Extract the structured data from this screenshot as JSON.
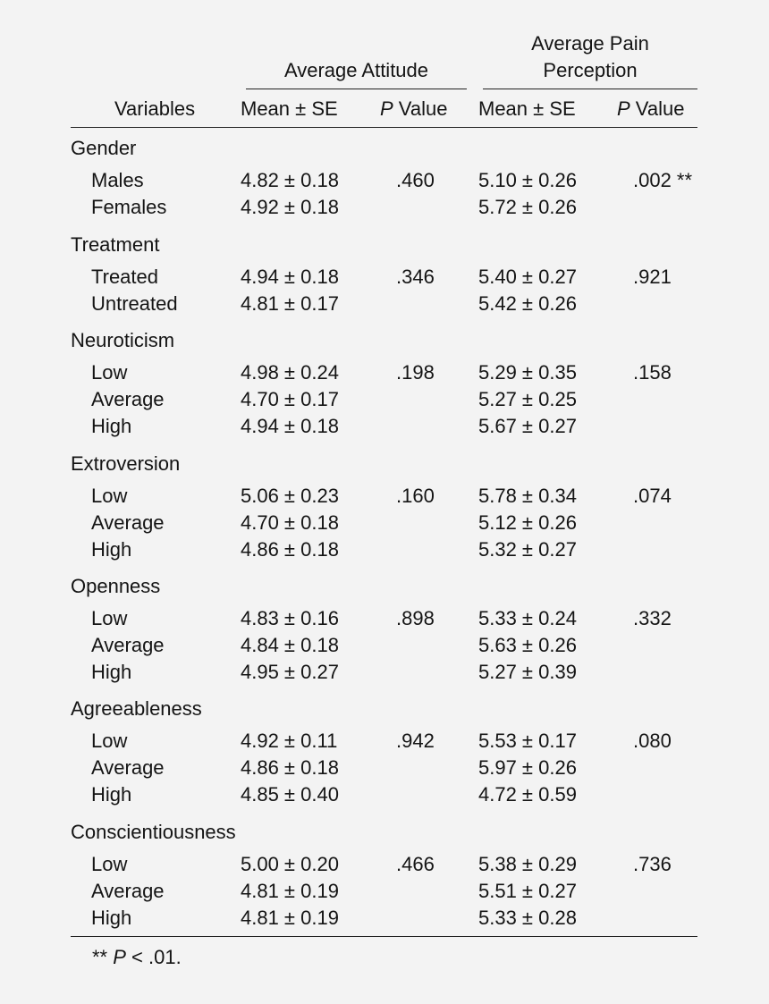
{
  "table": {
    "group_headers": {
      "attitude": "Average Attitude",
      "pain_line1": "Average Pain",
      "pain_line2": "Perception"
    },
    "columns": {
      "variables": "Variables",
      "mean_se": "Mean ± SE",
      "p_italic": "P",
      "p_value": " Value"
    },
    "groups": [
      {
        "name": "Gender",
        "rows": [
          {
            "label": "Males",
            "att": "4.82 ± 0.18",
            "att_p": ".460",
            "pain": "5.10 ± 0.26",
            "pain_p": ".002 **"
          },
          {
            "label": "Females",
            "att": "4.92 ± 0.18",
            "att_p": "",
            "pain": "5.72 ± 0.26",
            "pain_p": ""
          }
        ]
      },
      {
        "name": "Treatment",
        "rows": [
          {
            "label": "Treated",
            "att": "4.94 ± 0.18",
            "att_p": ".346",
            "pain": "5.40 ± 0.27",
            "pain_p": ".921"
          },
          {
            "label": "Untreated",
            "att": "4.81 ± 0.17",
            "att_p": "",
            "pain": "5.42 ± 0.26",
            "pain_p": ""
          }
        ]
      },
      {
        "name": "Neuroticism",
        "rows": [
          {
            "label": "Low",
            "att": "4.98 ± 0.24",
            "att_p": ".198",
            "pain": "5.29 ± 0.35",
            "pain_p": ".158"
          },
          {
            "label": "Average",
            "att": "4.70 ± 0.17",
            "att_p": "",
            "pain": "5.27 ± 0.25",
            "pain_p": ""
          },
          {
            "label": "High",
            "att": "4.94 ± 0.18",
            "att_p": "",
            "pain": "5.67 ± 0.27",
            "pain_p": ""
          }
        ]
      },
      {
        "name": "Extroversion",
        "rows": [
          {
            "label": "Low",
            "att": "5.06 ± 0.23",
            "att_p": ".160",
            "pain": "5.78 ± 0.34",
            "pain_p": ".074"
          },
          {
            "label": "Average",
            "att": "4.70 ± 0.18",
            "att_p": "",
            "pain": "5.12 ± 0.26",
            "pain_p": ""
          },
          {
            "label": "High",
            "att": "4.86 ± 0.18",
            "att_p": "",
            "pain": "5.32 ± 0.27",
            "pain_p": ""
          }
        ]
      },
      {
        "name": "Openness",
        "rows": [
          {
            "label": "Low",
            "att": "4.83 ± 0.16",
            "att_p": ".898",
            "pain": "5.33 ± 0.24",
            "pain_p": ".332"
          },
          {
            "label": "Average",
            "att": "4.84 ± 0.18",
            "att_p": "",
            "pain": "5.63 ± 0.26",
            "pain_p": ""
          },
          {
            "label": "High",
            "att": "4.95 ± 0.27",
            "att_p": "",
            "pain": "5.27 ± 0.39",
            "pain_p": ""
          }
        ]
      },
      {
        "name": "Agreeableness",
        "rows": [
          {
            "label": "Low",
            "att": "4.92 ± 0.11",
            "att_p": ".942",
            "pain": "5.53 ± 0.17",
            "pain_p": ".080"
          },
          {
            "label": "Average",
            "att": "4.86 ± 0.18",
            "att_p": "",
            "pain": "5.97 ± 0.26",
            "pain_p": ""
          },
          {
            "label": "High",
            "att": "4.85 ± 0.40",
            "att_p": "",
            "pain": "4.72 ± 0.59",
            "pain_p": ""
          }
        ]
      },
      {
        "name": "Conscientiousness",
        "rows": [
          {
            "label": "Low",
            "att": "5.00 ± 0.20",
            "att_p": ".466",
            "pain": "5.38 ± 0.29",
            "pain_p": ".736"
          },
          {
            "label": "Average",
            "att": "4.81 ± 0.19",
            "att_p": "",
            "pain": "5.51 ± 0.27",
            "pain_p": ""
          },
          {
            "label": "High",
            "att": "4.81 ± 0.19",
            "att_p": "",
            "pain": "5.33 ± 0.28",
            "pain_p": ""
          }
        ]
      }
    ],
    "footnote": {
      "stars": "** ",
      "p": "P",
      "rest": " < .01."
    }
  }
}
